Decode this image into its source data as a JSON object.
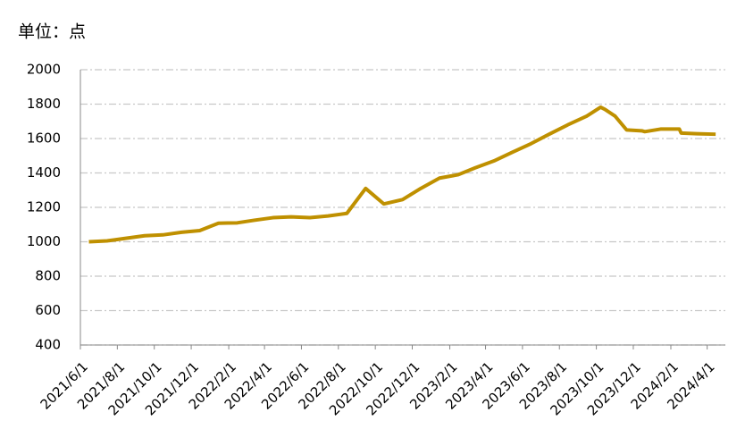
{
  "chart_data": {
    "type": "line",
    "title": "单位：点",
    "x": [
      "2021/6/15",
      "2021/7/15",
      "2021/8/15",
      "2021/9/15",
      "2021/10/15",
      "2021/11/15",
      "2021/12/15",
      "2022/1/15",
      "2022/2/15",
      "2022/3/15",
      "2022/4/15",
      "2022/5/15",
      "2022/6/15",
      "2022/7/15",
      "2022/8/15",
      "2022/9/15",
      "2022/10/15",
      "2022/11/15",
      "2022/12/15",
      "2023/1/15",
      "2023/2/15",
      "2023/3/15",
      "2023/4/15",
      "2023/5/15",
      "2023/6/15",
      "2023/7/15",
      "2023/8/15",
      "2023/9/15",
      "2023/10/8",
      "2023/10/15",
      "2023/11/1",
      "2023/11/20",
      "2023/12/15",
      "2023/12/20",
      "2024/1/15",
      "2024/2/15",
      "2024/2/18",
      "2024/3/15",
      "2024/4/15"
    ],
    "series": [
      {
        "color": "#bf9000",
        "values": [
          1000,
          1005,
          1020,
          1035,
          1040,
          1055,
          1065,
          1108,
          1110,
          1125,
          1140,
          1145,
          1140,
          1150,
          1165,
          1310,
          1220,
          1245,
          1310,
          1370,
          1390,
          1430,
          1470,
          1520,
          1570,
          1625,
          1680,
          1730,
          1782,
          1770,
          1730,
          1650,
          1645,
          1640,
          1655,
          1655,
          1632,
          1628,
          1625
        ]
      }
    ],
    "xlim": [
      "2021/6/1",
      "2024/5/1"
    ],
    "xticks": [
      "2021/6/1",
      "2021/8/1",
      "2021/10/1",
      "2021/12/1",
      "2022/2/1",
      "2022/4/1",
      "2022/6/1",
      "2022/8/1",
      "2022/10/1",
      "2022/12/1",
      "2023/2/1",
      "2023/4/1",
      "2023/6/1",
      "2023/8/1",
      "2023/10/1",
      "2023/12/1",
      "2024/2/1",
      "2024/4/1"
    ],
    "ylim": [
      400,
      2000
    ],
    "yticks": [
      400,
      600,
      800,
      1000,
      1200,
      1400,
      1600,
      1800,
      2000
    ],
    "grid": true
  }
}
